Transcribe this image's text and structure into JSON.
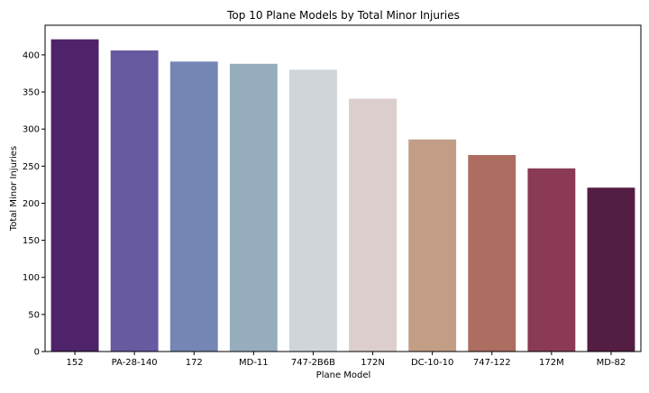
{
  "chart_data": {
    "type": "bar",
    "title": "Top 10 Plane Models by Total Minor Injuries",
    "xlabel": "Plane Model",
    "ylabel": "Total Minor Injuries",
    "categories": [
      "152",
      "PA-28-140",
      "172",
      "MD-11",
      "747-2B6B",
      "172N",
      "DC-10-10",
      "747-122",
      "172M",
      "MD-82"
    ],
    "values": [
      421,
      406,
      391,
      388,
      380,
      341,
      286,
      265,
      247,
      221
    ],
    "colors": [
      "#4f2369",
      "#6959a0",
      "#7386b4",
      "#96adbd",
      "#d0d5da",
      "#dbcecd",
      "#c29e87",
      "#ad6d61",
      "#8a3a55",
      "#541e42"
    ],
    "ylim": [
      0,
      440
    ],
    "yticks": [
      0,
      50,
      100,
      150,
      200,
      250,
      300,
      350,
      400
    ],
    "grid": false,
    "legend": "none"
  }
}
